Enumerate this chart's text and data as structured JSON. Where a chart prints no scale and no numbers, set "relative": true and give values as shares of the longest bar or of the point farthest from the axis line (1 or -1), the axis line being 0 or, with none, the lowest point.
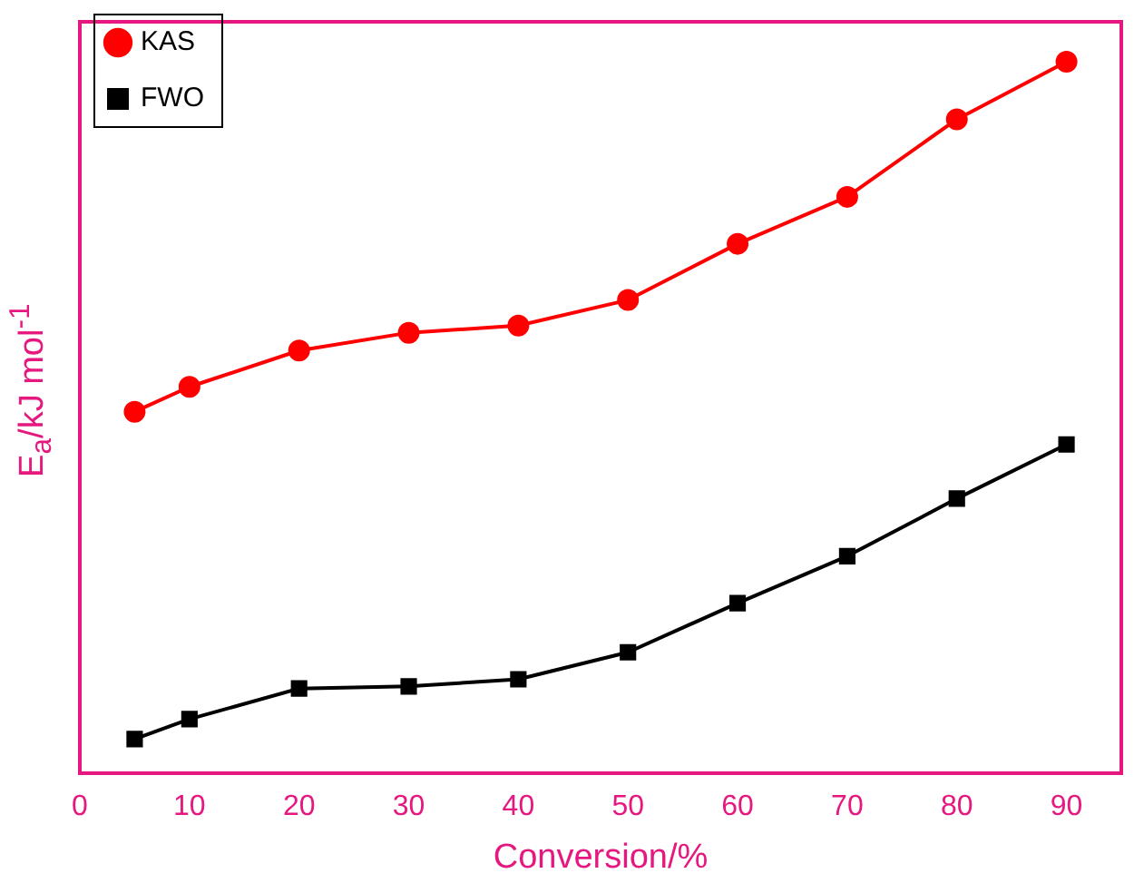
{
  "chart_data": {
    "type": "line",
    "xlabel": "Conversion/%",
    "ylabel": "E$_{a}$/kJ mol$^{-1}$",
    "relative": true,
    "x": [
      5,
      10,
      20,
      30,
      40,
      50,
      60,
      70,
      80,
      90
    ],
    "xlim": [
      0,
      95
    ],
    "xticks": [
      0,
      10,
      20,
      30,
      40,
      50,
      60,
      70,
      80,
      90
    ],
    "series": [
      {
        "name": "KAS",
        "color": "#ff0000",
        "marker": "circle",
        "values": [
          0.508,
          0.543,
          0.594,
          0.619,
          0.629,
          0.665,
          0.744,
          0.81,
          0.919,
          1
        ]
      },
      {
        "name": "FWO",
        "color": "#000000",
        "marker": "square",
        "values": [
          0.048,
          0.076,
          0.119,
          0.122,
          0.132,
          0.17,
          0.239,
          0.305,
          0.386,
          0.462
        ]
      }
    ],
    "legend": "top left",
    "grid": false
  }
}
